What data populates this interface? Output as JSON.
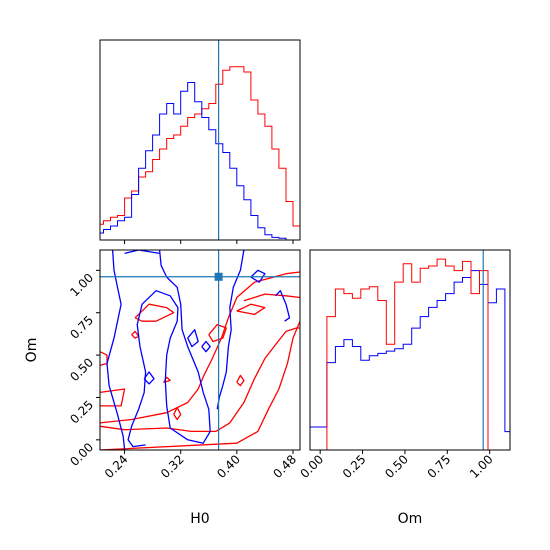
{
  "chart_data": {
    "type": "corner",
    "parameters": [
      "H0",
      "Om"
    ],
    "truth": {
      "H0": 0.374,
      "Om": 0.962
    },
    "truth_color": "#1f77b4",
    "series": [
      {
        "color": "#ff0000"
      },
      {
        "color": "#0000ff"
      }
    ],
    "axes": {
      "H0": {
        "range": [
          0.205,
          0.49
        ],
        "ticks": [
          0.24,
          0.32,
          0.4,
          0.48
        ],
        "tick_labels": [
          "0.24",
          "0.32",
          "0.40",
          "0.48"
        ],
        "xlabel": "H0"
      },
      "Om": {
        "range": [
          -0.06,
          1.12
        ],
        "ticks": [
          0.0,
          0.25,
          0.5,
          0.75,
          1.0
        ],
        "tick_labels": [
          "0.00",
          "0.25",
          "0.50",
          "0.75",
          "1.00"
        ],
        "xlabel": "Om",
        "ylabel": "Om"
      }
    },
    "hist_H0": {
      "bins": [
        0.2,
        0.21,
        0.22,
        0.23,
        0.24,
        0.25,
        0.26,
        0.27,
        0.28,
        0.29,
        0.3,
        0.31,
        0.32,
        0.33,
        0.34,
        0.35,
        0.36,
        0.37,
        0.38,
        0.39,
        0.4,
        0.41,
        0.42,
        0.43,
        0.44,
        0.45,
        0.46,
        0.47,
        0.48,
        0.49
      ],
      "red": [
        0.09,
        0.11,
        0.13,
        0.14,
        0.24,
        0.28,
        0.36,
        0.39,
        0.46,
        0.52,
        0.58,
        0.6,
        0.65,
        0.7,
        0.72,
        0.75,
        0.78,
        0.89,
        0.97,
        0.99,
        0.99,
        0.96,
        0.8,
        0.72,
        0.65,
        0.52,
        0.41,
        0.22,
        0.08
      ],
      "blue": [
        0.04,
        0.06,
        0.08,
        0.11,
        0.13,
        0.26,
        0.41,
        0.51,
        0.6,
        0.72,
        0.78,
        0.72,
        0.85,
        0.9,
        0.79,
        0.7,
        0.63,
        0.55,
        0.5,
        0.41,
        0.31,
        0.23,
        0.14,
        0.07,
        0.03,
        0.015,
        0.01,
        0.0,
        0.0
      ]
    },
    "hist_Om": {
      "bins": [
        -0.06,
        -0.01,
        0.04,
        0.09,
        0.14,
        0.19,
        0.24,
        0.29,
        0.34,
        0.39,
        0.44,
        0.49,
        0.54,
        0.59,
        0.64,
        0.69,
        0.74,
        0.79,
        0.84,
        0.89,
        0.94,
        0.99,
        1.04,
        1.09,
        1.12
      ],
      "red": [
        0.0,
        0.0,
        0.58,
        0.7,
        0.68,
        0.66,
        0.7,
        0.71,
        0.65,
        0.46,
        0.73,
        0.81,
        0.73,
        0.79,
        0.8,
        0.83,
        0.8,
        0.78,
        0.82,
        0.68,
        0.78,
        0.0,
        0.0,
        0.0
      ],
      "blue": [
        0.1,
        0.1,
        0.38,
        0.45,
        0.48,
        0.45,
        0.39,
        0.41,
        0.42,
        0.43,
        0.44,
        0.46,
        0.53,
        0.58,
        0.62,
        0.65,
        0.68,
        0.73,
        0.75,
        0.78,
        0.72,
        0.64,
        0.7,
        0.08
      ]
    },
    "contours": {
      "red": [
        [
          [
            0.205,
            0.1
          ],
          [
            0.25,
            0.12
          ],
          [
            0.3,
            0.16
          ],
          [
            0.33,
            0.22
          ],
          [
            0.345,
            0.3
          ],
          [
            0.353,
            0.38
          ],
          [
            0.365,
            0.48
          ],
          [
            0.378,
            0.6
          ],
          [
            0.388,
            0.72
          ],
          [
            0.4,
            0.84
          ],
          [
            0.425,
            0.93
          ],
          [
            0.47,
            0.98
          ],
          [
            0.49,
            0.99
          ]
        ],
        [
          [
            0.205,
            0.08
          ],
          [
            0.24,
            0.06
          ],
          [
            0.3,
            0.07
          ],
          [
            0.335,
            0.05
          ],
          [
            0.37,
            0.05
          ],
          [
            0.39,
            0.1
          ],
          [
            0.41,
            0.22
          ],
          [
            0.425,
            0.36
          ],
          [
            0.44,
            0.48
          ],
          [
            0.455,
            0.56
          ],
          [
            0.47,
            0.64
          ],
          [
            0.485,
            0.66
          ],
          [
            0.49,
            0.66
          ]
        ],
        [
          [
            0.205,
            -0.06
          ],
          [
            0.4,
            -0.02
          ],
          [
            0.43,
            0.05
          ],
          [
            0.445,
            0.18
          ],
          [
            0.46,
            0.3
          ],
          [
            0.472,
            0.45
          ],
          [
            0.48,
            0.6
          ],
          [
            0.49,
            0.7
          ]
        ],
        [
          [
            0.205,
            0.28
          ],
          [
            0.24,
            0.3
          ],
          [
            0.235,
            0.2
          ],
          [
            0.205,
            0.2
          ]
        ],
        [
          [
            0.205,
            0.52
          ],
          [
            0.215,
            0.5
          ],
          [
            0.215,
            0.45
          ],
          [
            0.205,
            0.44
          ]
        ],
        [
          [
            0.255,
            0.72
          ],
          [
            0.275,
            0.8
          ],
          [
            0.3,
            0.78
          ],
          [
            0.31,
            0.75
          ],
          [
            0.285,
            0.7
          ],
          [
            0.265,
            0.7
          ],
          [
            0.255,
            0.72
          ]
        ],
        [
          [
            0.36,
            0.62
          ],
          [
            0.372,
            0.68
          ],
          [
            0.385,
            0.66
          ],
          [
            0.38,
            0.6
          ],
          [
            0.366,
            0.58
          ],
          [
            0.36,
            0.62
          ]
        ],
        [
          [
            0.4,
            0.76
          ],
          [
            0.42,
            0.8
          ],
          [
            0.44,
            0.78
          ],
          [
            0.425,
            0.74
          ],
          [
            0.4,
            0.76
          ]
        ],
        [
          [
            0.41,
            0.82
          ],
          [
            0.44,
            0.86
          ],
          [
            0.47,
            0.85
          ],
          [
            0.49,
            0.84
          ]
        ],
        [
          [
            0.3,
            0.37
          ],
          [
            0.305,
            0.35
          ],
          [
            0.296,
            0.34
          ],
          [
            0.3,
            0.37
          ]
        ],
        [
          [
            0.31,
            0.15
          ],
          [
            0.315,
            0.19
          ],
          [
            0.32,
            0.15
          ],
          [
            0.315,
            0.12
          ],
          [
            0.31,
            0.15
          ]
        ],
        [
          [
            0.4,
            0.34
          ],
          [
            0.405,
            0.38
          ],
          [
            0.41,
            0.35
          ],
          [
            0.405,
            0.32
          ],
          [
            0.4,
            0.34
          ]
        ],
        [
          [
            0.25,
            0.62
          ],
          [
            0.255,
            0.64
          ],
          [
            0.26,
            0.61
          ],
          [
            0.255,
            0.6
          ],
          [
            0.25,
            0.62
          ]
        ]
      ],
      "blue": [
        [
          [
            0.223,
            1.12
          ],
          [
            0.225,
            1.0
          ],
          [
            0.23,
            0.9
          ],
          [
            0.235,
            0.8
          ],
          [
            0.225,
            0.6
          ],
          [
            0.215,
            0.45
          ],
          [
            0.218,
            0.32
          ],
          [
            0.23,
            0.15
          ],
          [
            0.238,
            0.02
          ],
          [
            0.24,
            -0.06
          ]
        ],
        [
          [
            0.29,
            1.12
          ],
          [
            0.292,
            1.03
          ],
          [
            0.3,
            0.96
          ],
          [
            0.315,
            0.9
          ],
          [
            0.32,
            0.8
          ],
          [
            0.322,
            0.65
          ],
          [
            0.33,
            0.55
          ],
          [
            0.345,
            0.4
          ],
          [
            0.352,
            0.28
          ],
          [
            0.36,
            0.18
          ],
          [
            0.362,
            0.05
          ],
          [
            0.352,
            -0.02
          ],
          [
            0.33,
            0.0
          ],
          [
            0.305,
            0.07
          ],
          [
            0.3,
            0.2
          ],
          [
            0.298,
            0.35
          ],
          [
            0.3,
            0.5
          ],
          [
            0.305,
            0.6
          ],
          [
            0.315,
            0.7
          ],
          [
            0.316,
            0.78
          ],
          [
            0.305,
            0.85
          ],
          [
            0.285,
            0.88
          ],
          [
            0.265,
            0.8
          ],
          [
            0.258,
            0.68
          ],
          [
            0.262,
            0.55
          ],
          [
            0.27,
            0.4
          ],
          [
            0.268,
            0.28
          ],
          [
            0.26,
            0.18
          ],
          [
            0.25,
            0.08
          ],
          [
            0.245,
            0.0
          ],
          [
            0.252,
            -0.04
          ],
          [
            0.27,
            -0.03
          ]
        ],
        [
          [
            0.41,
            1.12
          ],
          [
            0.405,
            1.0
          ],
          [
            0.395,
            0.9
          ],
          [
            0.39,
            0.78
          ],
          [
            0.392,
            0.65
          ],
          [
            0.388,
            0.55
          ],
          [
            0.385,
            0.4
          ],
          [
            0.38,
            0.32
          ],
          [
            0.375,
            0.25
          ],
          [
            0.372,
            0.18
          ]
        ],
        [
          [
            0.24,
            1.1
          ],
          [
            0.26,
            1.12
          ],
          [
            0.29,
            1.1
          ]
        ],
        [
          [
            0.42,
            0.96
          ],
          [
            0.43,
            1.0
          ],
          [
            0.44,
            0.98
          ],
          [
            0.432,
            0.93
          ],
          [
            0.42,
            0.96
          ]
        ],
        [
          [
            0.33,
            0.6
          ],
          [
            0.34,
            0.65
          ],
          [
            0.345,
            0.58
          ],
          [
            0.336,
            0.55
          ],
          [
            0.33,
            0.6
          ]
        ],
        [
          [
            0.268,
            0.36
          ],
          [
            0.275,
            0.4
          ],
          [
            0.282,
            0.36
          ],
          [
            0.275,
            0.33
          ],
          [
            0.268,
            0.36
          ]
        ],
        [
          [
            0.35,
            0.55
          ],
          [
            0.356,
            0.58
          ],
          [
            0.362,
            0.55
          ],
          [
            0.356,
            0.52
          ],
          [
            0.35,
            0.55
          ]
        ],
        [
          [
            0.455,
            0.85
          ],
          [
            0.462,
            0.88
          ],
          [
            0.47,
            0.8
          ],
          [
            0.475,
            0.72
          ],
          [
            0.468,
            0.7
          ]
        ]
      ]
    }
  }
}
